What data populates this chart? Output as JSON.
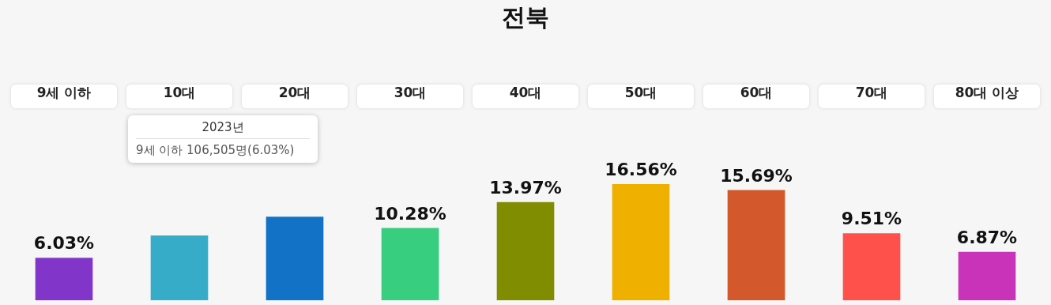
{
  "chart_data": {
    "type": "bar",
    "title": "전북",
    "categories": [
      "9세 이하",
      "10대",
      "20대",
      "30대",
      "40대",
      "50대",
      "60대",
      "70대",
      "80대 이상"
    ],
    "values": [
      6.03,
      9.2,
      11.9,
      10.28,
      13.97,
      16.56,
      15.69,
      9.51,
      6.87
    ],
    "value_labels": [
      "6.03%",
      null,
      null,
      "10.28%",
      "13.97%",
      "16.56%",
      "15.69%",
      "9.51%",
      "6.87%"
    ],
    "colors": [
      "#8136c9",
      "#36acc8",
      "#1172c6",
      "#38ce7f",
      "#818d00",
      "#f0b000",
      "#d3582b",
      "#ff514b",
      "#c933b9"
    ],
    "annotations": [
      "2023년",
      "9세 이하 106,505명(6.03%)"
    ]
  }
}
